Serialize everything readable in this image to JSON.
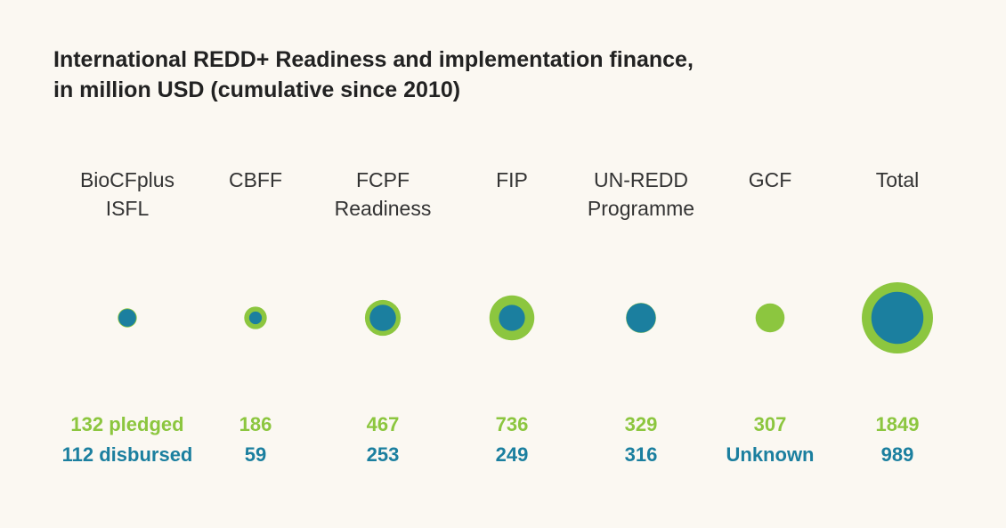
{
  "chart_data": {
    "type": "bubble",
    "title": [
      "International REDD+ Readiness and implementation finance,",
      "in million USD (cumulative since 2010)"
    ],
    "categories": [
      "BioCFplus ISFL",
      "CBFF",
      "FCPF Readiness",
      "FIP",
      "UN-REDD Programme",
      "GCF",
      "Total"
    ],
    "series": [
      {
        "name": "pledged",
        "color": "#8cc63f",
        "values": [
          132,
          186,
          467,
          736,
          329,
          307,
          1849
        ],
        "value_labels": [
          "132 pledged",
          "186",
          "467",
          "736",
          "329",
          "307",
          "1849"
        ]
      },
      {
        "name": "disbursed",
        "color": "#1b7f9f",
        "values": [
          112,
          59,
          253,
          249,
          316,
          null,
          989
        ],
        "value_labels": [
          "112 disbursed",
          "59",
          "253",
          "249",
          "316",
          "Unknown",
          "989"
        ]
      }
    ]
  }
}
